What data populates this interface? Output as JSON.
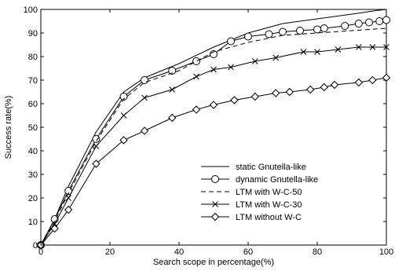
{
  "chart_data": {
    "type": "line",
    "title": "",
    "xlabel": "Search scope in percentage(%)",
    "ylabel": "Success rate(%)",
    "xlim": [
      0,
      100
    ],
    "ylim": [
      0,
      100
    ],
    "xticks": [
      0,
      20,
      40,
      60,
      80,
      100
    ],
    "yticks": [
      0,
      10,
      20,
      30,
      40,
      50,
      60,
      70,
      80,
      90,
      100
    ],
    "grid": false,
    "legend_position": "lower-right",
    "series": [
      {
        "name": "static Gnutella-like",
        "line_style": "solid",
        "marker": "none",
        "color": "#000000",
        "x": [
          0,
          4,
          8,
          16,
          24,
          30,
          40,
          50,
          60,
          70,
          80,
          90,
          97,
          100
        ],
        "y": [
          0,
          11,
          25,
          48,
          65,
          71,
          77,
          84,
          90,
          94,
          96,
          98,
          99.5,
          100
        ]
      },
      {
        "name": "dynamic Gnutella-like",
        "line_style": "solid",
        "marker": "circle",
        "color": "#000000",
        "x": [
          0,
          4,
          8,
          16,
          24,
          30,
          38,
          45,
          50,
          55,
          60,
          66,
          70,
          75,
          80,
          82,
          88,
          92,
          95,
          98,
          100
        ],
        "y": [
          0,
          11,
          23,
          45,
          63,
          70,
          74,
          78,
          81,
          86.5,
          88.5,
          89.5,
          90.5,
          91,
          91.5,
          92,
          93,
          94,
          94.5,
          95,
          95.5
        ]
      },
      {
        "name": "LTM with W-C-50",
        "line_style": "dashed",
        "marker": "none",
        "color": "#000000",
        "x": [
          0,
          4,
          8,
          16,
          24,
          30,
          40,
          50,
          60,
          70,
          80,
          90,
          100
        ],
        "y": [
          0,
          10,
          22,
          44,
          62,
          69,
          74,
          82,
          86,
          89,
          90,
          91,
          92
        ]
      },
      {
        "name": "LTM with W-C-30",
        "line_style": "solid",
        "marker": "x",
        "color": "#000000",
        "x": [
          0,
          4,
          8,
          16,
          24,
          30,
          38,
          45,
          50,
          55,
          62,
          68,
          76,
          80,
          86,
          92,
          96,
          100
        ],
        "y": [
          0,
          9,
          20,
          42,
          55,
          62.5,
          66,
          71.5,
          74.5,
          75.5,
          78,
          79.5,
          82,
          82,
          83,
          84,
          84,
          84
        ]
      },
      {
        "name": "LTM without W-C",
        "line_style": "solid",
        "marker": "diamond",
        "color": "#000000",
        "x": [
          0,
          4,
          8,
          16,
          24,
          30,
          38,
          45,
          50,
          56,
          62,
          68,
          72,
          78,
          82,
          85,
          92,
          96,
          100
        ],
        "y": [
          0,
          7,
          15,
          34.5,
          44.5,
          48.5,
          54,
          57.5,
          59.5,
          61.5,
          63,
          64.5,
          65,
          66,
          67,
          68,
          69,
          70,
          71
        ]
      }
    ]
  }
}
